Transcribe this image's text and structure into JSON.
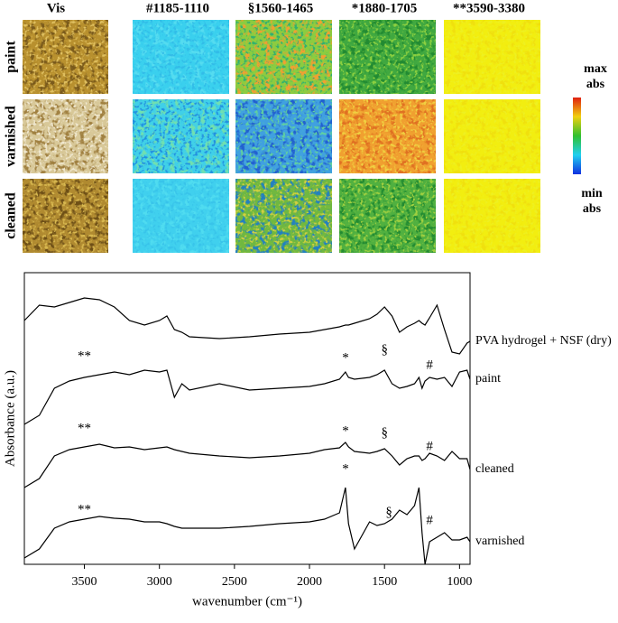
{
  "image_grid": {
    "columns": [
      "Vis",
      "#1185-1110",
      "§1560-1465",
      "*1880-1705",
      "**3590-3380"
    ],
    "rows": [
      "paint",
      "varnished",
      "cleaned"
    ],
    "colorbar": {
      "max": "max abs",
      "min": "min abs"
    }
  },
  "chart_data": {
    "type": "line",
    "xlabel": "wavenumber (cm⁻¹)",
    "ylabel": "Absorbance (a.u.)",
    "x": [
      3900,
      3800,
      3700,
      3600,
      3500,
      3400,
      3300,
      3200,
      3100,
      3000,
      2950,
      2900,
      2850,
      2800,
      2600,
      2400,
      2200,
      2000,
      1900,
      1800,
      1760,
      1740,
      1700,
      1600,
      1550,
      1500,
      1450,
      1400,
      1350,
      1300,
      1270,
      1250,
      1230,
      1200,
      1150,
      1100,
      1050,
      1000,
      950,
      930
    ],
    "xlim": [
      3900,
      930
    ],
    "xticks": [
      3500,
      3000,
      2500,
      2000,
      1500,
      1000
    ],
    "ylim": [
      0,
      323
    ],
    "series": [
      {
        "name": "PVA hydrogel + NSF (dry)",
        "color": "#000000",
        "values": [
          270,
          287,
          285,
          290,
          295,
          293,
          285,
          270,
          265,
          270,
          275,
          260,
          257,
          252,
          250,
          252,
          255,
          257,
          260,
          263,
          265,
          265,
          267,
          272,
          277,
          285,
          275,
          257,
          263,
          267,
          270,
          267,
          265,
          273,
          287,
          260,
          235,
          233,
          245,
          247
        ],
        "annotations": []
      },
      {
        "name": "paint",
        "color": "#000000",
        "values": [
          155,
          165,
          195,
          203,
          207,
          210,
          213,
          210,
          215,
          213,
          215,
          185,
          200,
          193,
          200,
          193,
          195,
          197,
          200,
          205,
          213,
          207,
          205,
          207,
          210,
          215,
          200,
          195,
          197,
          200,
          207,
          195,
          203,
          207,
          205,
          207,
          197,
          213,
          215,
          205
        ],
        "annotations": [
          {
            "text": "**",
            "x": 3500,
            "y": 230
          },
          {
            "text": "*",
            "x": 1760,
            "y": 228
          },
          {
            "text": "§",
            "x": 1500,
            "y": 237
          },
          {
            "text": "#",
            "x": 1200,
            "y": 220
          }
        ]
      },
      {
        "name": "cleaned",
        "color": "#000000",
        "values": [
          85,
          95,
          120,
          127,
          130,
          133,
          129,
          130,
          127,
          129,
          130,
          127,
          125,
          123,
          120,
          118,
          120,
          123,
          127,
          129,
          135,
          130,
          125,
          123,
          125,
          128,
          120,
          110,
          117,
          120,
          120,
          115,
          117,
          123,
          120,
          115,
          125,
          117,
          117,
          105
        ],
        "annotations": [
          {
            "text": "**",
            "x": 3500,
            "y": 150
          },
          {
            "text": "*",
            "x": 1760,
            "y": 147
          },
          {
            "text": "§",
            "x": 1500,
            "y": 145
          },
          {
            "text": "#",
            "x": 1200,
            "y": 130
          }
        ]
      },
      {
        "name": "varnished",
        "color": "#000000",
        "values": [
          7,
          17,
          40,
          47,
          50,
          53,
          51,
          50,
          47,
          47,
          45,
          42,
          40,
          40,
          40,
          42,
          45,
          47,
          50,
          57,
          85,
          45,
          17,
          47,
          43,
          45,
          50,
          60,
          55,
          65,
          85,
          35,
          0,
          25,
          30,
          35,
          27,
          27,
          30,
          25
        ],
        "annotations": [
          {
            "text": "**",
            "x": 3500,
            "y": 60
          },
          {
            "text": "*",
            "x": 1760,
            "y": 105
          },
          {
            "text": "§",
            "x": 1470,
            "y": 57
          },
          {
            "text": "#",
            "x": 1200,
            "y": 48
          }
        ]
      }
    ]
  }
}
